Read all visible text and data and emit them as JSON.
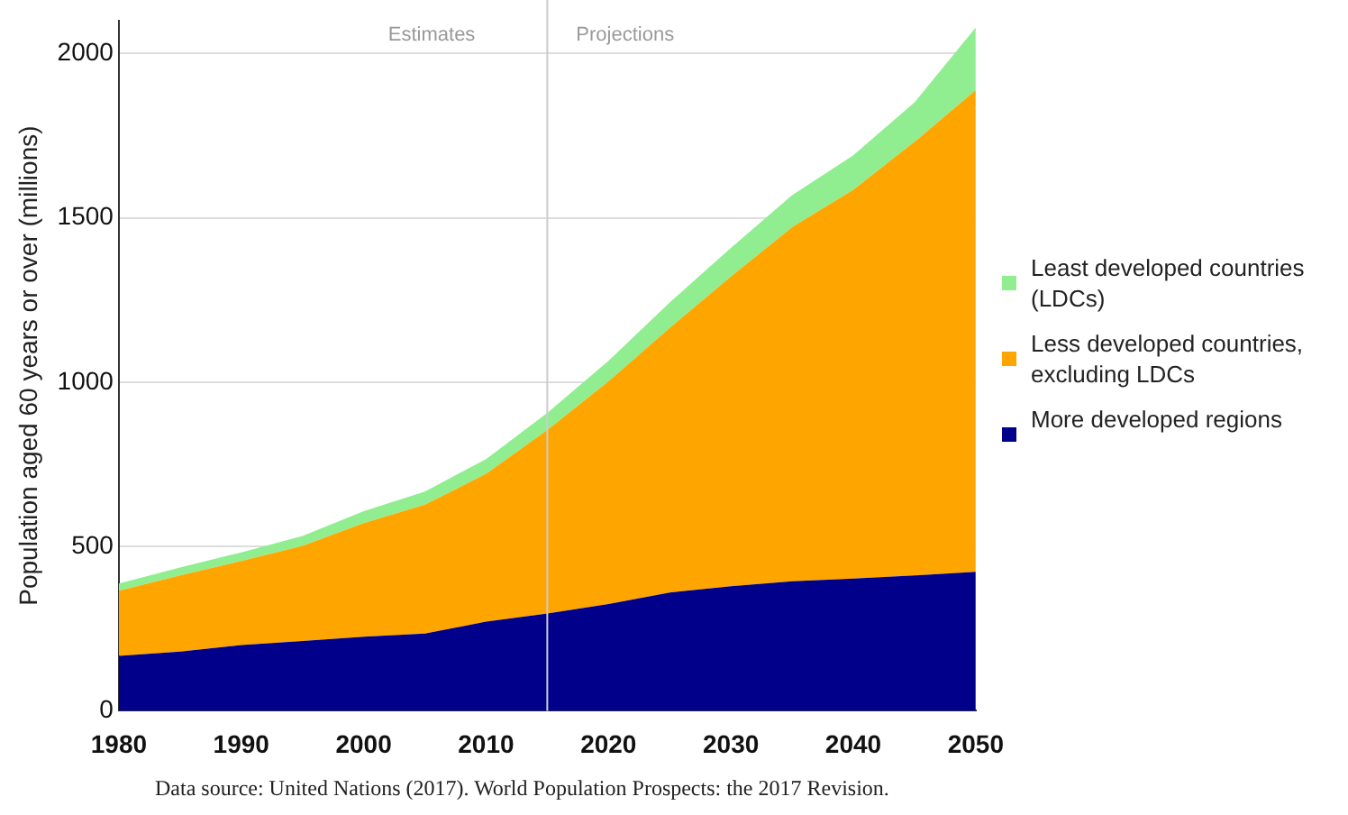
{
  "chart_data": {
    "type": "area",
    "stacked": true,
    "ylabel": "Population aged 60 years or over (millions)",
    "x": [
      1980,
      1985,
      1990,
      1995,
      2000,
      2005,
      2010,
      2015,
      2020,
      2025,
      2030,
      2035,
      2040,
      2045,
      2050
    ],
    "series": [
      {
        "name": "More developed regions",
        "color": "#00008b",
        "values": [
          167,
          180,
          200,
          212,
          225,
          235,
          271,
          296,
          325,
          360,
          379,
          394,
          402,
          412,
          423
        ]
      },
      {
        "name": "Less developed countries, excluding LDCs",
        "color": "#ffa500",
        "values": [
          198,
          232,
          256,
          290,
          346,
          392,
          450,
          558,
          677,
          805,
          942,
          1077,
          1183,
          1319,
          1465
        ]
      },
      {
        "name": "Least developed countries (LDCs)",
        "color": "#90ee90",
        "values": [
          22,
          24,
          26,
          30,
          36,
          40,
          45,
          52,
          63,
          77,
          87,
          98,
          105,
          120,
          191
        ]
      }
    ],
    "xlim": [
      1980,
      2050
    ],
    "xticks": [
      1980,
      1990,
      2000,
      2010,
      2020,
      2030,
      2040,
      2050
    ],
    "ylim": [
      0,
      2100
    ],
    "yticks": [
      0,
      500,
      1000,
      1500,
      2000
    ],
    "grid": "y",
    "legend": "right",
    "ref_lines": [
      {
        "axis": "x",
        "value": 2015,
        "color": "#cccccc"
      }
    ],
    "annotations": [
      "Estimates",
      "Projections",
      "Data source: United Nations (2017). World Population Prospects: the 2017 Revision."
    ]
  }
}
